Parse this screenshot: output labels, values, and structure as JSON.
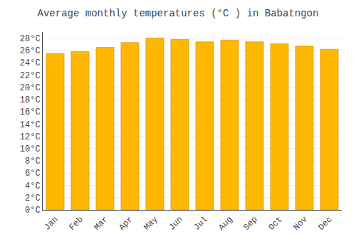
{
  "chart_data": {
    "type": "bar",
    "title": "Average monthly temperatures (°C ) in Babatngon",
    "categories": [
      "Jan",
      "Feb",
      "Mar",
      "Apr",
      "May",
      "Jun",
      "Jul",
      "Aug",
      "Sep",
      "Oct",
      "Nov",
      "Dec"
    ],
    "values": [
      25.5,
      25.8,
      26.5,
      27.3,
      28.0,
      27.8,
      27.4,
      27.7,
      27.4,
      27.1,
      26.7,
      26.2
    ],
    "color": "#FFB800",
    "ylim": [
      0,
      29
    ],
    "yticks": [
      {
        "value": 0,
        "label": "0°C"
      },
      {
        "value": 2,
        "label": "2°C"
      },
      {
        "value": 4,
        "label": "4°C"
      },
      {
        "value": 6,
        "label": "6°C"
      },
      {
        "value": 8,
        "label": "8°C"
      },
      {
        "value": 10,
        "label": "10°C"
      },
      {
        "value": 12,
        "label": "12°C"
      },
      {
        "value": 14,
        "label": "14°C"
      },
      {
        "value": 16,
        "label": "16°C"
      },
      {
        "value": 18,
        "label": "18°C"
      },
      {
        "value": 20,
        "label": "20°C"
      },
      {
        "value": 22,
        "label": "22°C"
      },
      {
        "value": 24,
        "label": "24°C"
      },
      {
        "value": 26,
        "label": "26°C"
      },
      {
        "value": 28,
        "label": "28°C"
      }
    ],
    "grid": true
  }
}
